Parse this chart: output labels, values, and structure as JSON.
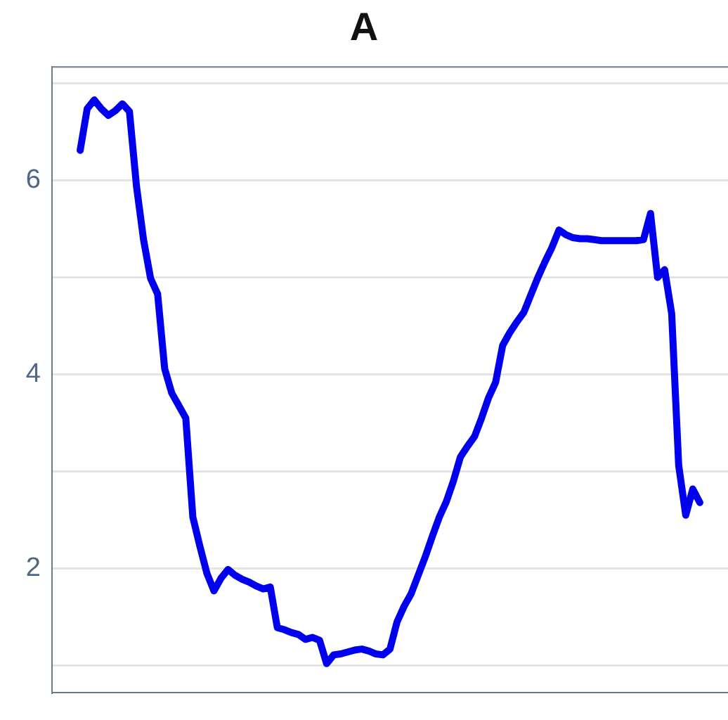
{
  "chart_data": {
    "type": "line",
    "title": "A",
    "categories": [
      null,
      null,
      null,
      null,
      null,
      null,
      null,
      null,
      null,
      null,
      null,
      null,
      null,
      null,
      null,
      null,
      null,
      null,
      null,
      null,
      null,
      null,
      null,
      null,
      null,
      null,
      null,
      null,
      null,
      null,
      null,
      null,
      null,
      null,
      null,
      null,
      null,
      null,
      null,
      null,
      null,
      null,
      null,
      null,
      null,
      null,
      null,
      null,
      null,
      null,
      null,
      null,
      null,
      null,
      null,
      null,
      null,
      null,
      null,
      null,
      null,
      null,
      null,
      null,
      null,
      null,
      null,
      null,
      null,
      null,
      null,
      null,
      null,
      null,
      null,
      null,
      null,
      null,
      null,
      null,
      null,
      null,
      null,
      null,
      null,
      null,
      null,
      null,
      null,
      null,
      null,
      null,
      null,
      null,
      null,
      null,
      null
    ],
    "series": [
      {
        "color": "#0000ee",
        "values": [
          null,
          null,
          null,
          null,
          6.31,
          6.74,
          6.83,
          6.74,
          6.67,
          6.72,
          6.79,
          6.71,
          5.94,
          5.39,
          4.99,
          4.83,
          4.06,
          3.81,
          3.68,
          3.55,
          2.53,
          2.23,
          1.95,
          1.77,
          1.9,
          1.99,
          1.93,
          1.89,
          1.86,
          1.82,
          1.79,
          1.81,
          1.39,
          1.37,
          1.34,
          1.32,
          1.27,
          1.29,
          1.26,
          1.02,
          1.11,
          1.12,
          1.14,
          1.16,
          1.17,
          1.15,
          1.12,
          1.11,
          1.17,
          1.45,
          1.61,
          1.74,
          1.93,
          2.12,
          2.33,
          2.53,
          2.69,
          2.9,
          3.15,
          3.26,
          3.36,
          3.55,
          3.76,
          3.92,
          4.3,
          4.43,
          4.54,
          4.64,
          4.82,
          5.0,
          5.16,
          5.31,
          5.49,
          5.44,
          5.41,
          5.4,
          5.4,
          5.39,
          5.38,
          5.38,
          5.38,
          5.38,
          5.38,
          5.38,
          5.39,
          5.66,
          5.0,
          5.08,
          4.63,
          3.06,
          2.55,
          2.82,
          2.68,
          null,
          null,
          null,
          null
        ]
      }
    ],
    "ylim": [
      0.72,
      7.17
    ],
    "yticks": [
      {
        "value": 1,
        "label": null
      },
      2,
      {
        "value": 3,
        "label": null
      },
      4,
      {
        "value": 5,
        "label": null
      },
      6,
      {
        "value": 7,
        "label": null
      }
    ],
    "grid": "y",
    "legend": false,
    "marker": "none",
    "line_style": "solid"
  }
}
